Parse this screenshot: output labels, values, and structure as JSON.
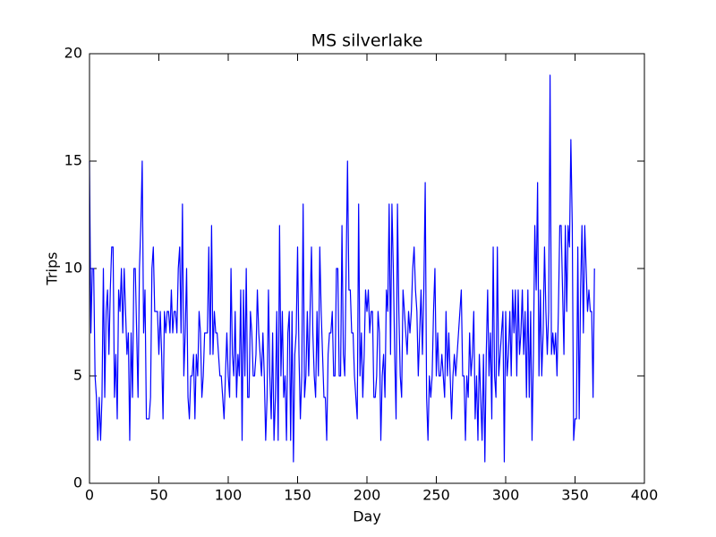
{
  "chart_data": {
    "type": "line",
    "title": "MS silverlake",
    "x_label": "Day",
    "y_label": "Trips",
    "color": "#0000ff",
    "xlim": [
      0,
      400
    ],
    "xticks": [
      0,
      50,
      100,
      150,
      200,
      250,
      300,
      350,
      400
    ],
    "ylim": [
      0,
      20
    ],
    "yticks": [
      0,
      5,
      10,
      15,
      20
    ],
    "grid": false,
    "x": [
      0,
      1,
      2,
      3,
      4,
      5,
      6,
      7,
      8,
      9,
      10,
      11,
      12,
      13,
      14,
      15,
      16,
      17,
      18,
      19,
      20,
      21,
      22,
      23,
      24,
      25,
      26,
      27,
      28,
      29,
      30,
      31,
      32,
      33,
      34,
      35,
      36,
      37,
      38,
      39,
      40,
      41,
      42,
      43,
      44,
      45,
      46,
      47,
      48,
      49,
      50,
      51,
      52,
      53,
      54,
      55,
      56,
      57,
      58,
      59,
      60,
      61,
      62,
      63,
      64,
      65,
      66,
      67,
      68,
      69,
      70,
      71,
      72,
      73,
      74,
      75,
      76,
      77,
      78,
      79,
      80,
      81,
      82,
      83,
      84,
      85,
      86,
      87,
      88,
      89,
      90,
      91,
      92,
      93,
      94,
      95,
      96,
      97,
      98,
      99,
      100,
      101,
      102,
      103,
      104,
      105,
      106,
      107,
      108,
      109,
      110,
      111,
      112,
      113,
      114,
      115,
      116,
      117,
      118,
      119,
      120,
      121,
      122,
      123,
      124,
      125,
      126,
      127,
      128,
      129,
      130,
      131,
      132,
      133,
      134,
      135,
      136,
      137,
      138,
      139,
      140,
      141,
      142,
      143,
      144,
      145,
      146,
      147,
      148,
      149,
      150,
      151,
      152,
      153,
      154,
      155,
      156,
      157,
      158,
      159,
      160,
      161,
      162,
      163,
      164,
      165,
      166,
      167,
      168,
      169,
      170,
      171,
      172,
      173,
      174,
      175,
      176,
      177,
      178,
      179,
      180,
      181,
      182,
      183,
      184,
      185,
      186,
      187,
      188,
      189,
      190,
      191,
      192,
      193,
      194,
      195,
      196,
      197,
      198,
      199,
      200,
      201,
      202,
      203,
      204,
      205,
      206,
      207,
      208,
      209,
      210,
      211,
      212,
      213,
      214,
      215,
      216,
      217,
      218,
      219,
      220,
      221,
      222,
      223,
      224,
      225,
      226,
      227,
      228,
      229,
      230,
      231,
      232,
      233,
      234,
      235,
      236,
      237,
      238,
      239,
      240,
      241,
      242,
      243,
      244,
      245,
      246,
      247,
      248,
      249,
      250,
      251,
      252,
      253,
      254,
      255,
      256,
      257,
      258,
      259,
      260,
      261,
      262,
      263,
      264,
      265,
      266,
      267,
      268,
      269,
      270,
      271,
      272,
      273,
      274,
      275,
      276,
      277,
      278,
      279,
      280,
      281,
      282,
      283,
      284,
      285,
      286,
      287,
      288,
      289,
      290,
      291,
      292,
      293,
      294,
      295,
      296,
      297,
      298,
      299,
      300,
      301,
      302,
      303,
      304,
      305,
      306,
      307,
      308,
      309,
      310,
      311,
      312,
      313,
      314,
      315,
      316,
      317,
      318,
      319,
      320,
      321,
      322,
      323,
      324,
      325,
      326,
      327,
      328,
      329,
      330,
      331,
      332,
      333,
      334,
      335,
      336,
      337,
      338,
      339,
      340,
      341,
      342,
      343,
      344,
      345,
      346,
      347,
      348,
      349,
      350,
      351,
      352,
      353,
      354,
      355,
      356,
      357,
      358,
      359,
      360,
      361,
      362,
      363,
      364
    ],
    "values": [
      15,
      7,
      10,
      10,
      5,
      4,
      2,
      4,
      2,
      4,
      10,
      4,
      8,
      9,
      6,
      9,
      11,
      11,
      4,
      6,
      3,
      9,
      8,
      10,
      7,
      10,
      8,
      6,
      7,
      2,
      7,
      4,
      10,
      10,
      7,
      4,
      10,
      12,
      15,
      7,
      9,
      3,
      3,
      3,
      4,
      10,
      11,
      8,
      8,
      8,
      6,
      8,
      6,
      3,
      8,
      7,
      8,
      8,
      7,
      9,
      7,
      8,
      8,
      7,
      10,
      11,
      7,
      13,
      5,
      7,
      10,
      4,
      3,
      5,
      5,
      6,
      3,
      6,
      5,
      8,
      7,
      4,
      5,
      7,
      7,
      7,
      11,
      6,
      12,
      6,
      8,
      7,
      7,
      6,
      5,
      5,
      4,
      3,
      5,
      7,
      5,
      4,
      10,
      6,
      5,
      8,
      4,
      6,
      5,
      9,
      2,
      9,
      5,
      10,
      4,
      4,
      8,
      7,
      5,
      5,
      6,
      9,
      7,
      6,
      5,
      7,
      5,
      2,
      4,
      9,
      5,
      3,
      7,
      2,
      4,
      8,
      2,
      12,
      5,
      8,
      4,
      5,
      2,
      7,
      8,
      2,
      8,
      1,
      6,
      7,
      11,
      6,
      3,
      5,
      13,
      4,
      5,
      8,
      5,
      8,
      11,
      7,
      5,
      4,
      8,
      5,
      11,
      8,
      6,
      4,
      4,
      2,
      6,
      7,
      7,
      8,
      5,
      5,
      10,
      10,
      5,
      5,
      12,
      6,
      5,
      10,
      15,
      9,
      9,
      7,
      7,
      5,
      4,
      3,
      13,
      5,
      7,
      4,
      6,
      9,
      8,
      9,
      7,
      8,
      8,
      4,
      4,
      5,
      8,
      7,
      2,
      5,
      6,
      4,
      9,
      8,
      13,
      6,
      13,
      10,
      6,
      3,
      13,
      8,
      5,
      4,
      9,
      8,
      7,
      6,
      8,
      7,
      8,
      10,
      11,
      9,
      8,
      5,
      7,
      9,
      6,
      9,
      14,
      4,
      2,
      5,
      4,
      5,
      8,
      10,
      5,
      7,
      5,
      5,
      6,
      5,
      4,
      8,
      5,
      7,
      5,
      3,
      5,
      6,
      5,
      6,
      7,
      8,
      9,
      5,
      5,
      2,
      5,
      4,
      7,
      5,
      6,
      8,
      3,
      5,
      2,
      6,
      4,
      2,
      6,
      1,
      6,
      9,
      5,
      7,
      3,
      11,
      5,
      4,
      11,
      5,
      6,
      7,
      8,
      1,
      8,
      5,
      6,
      8,
      5,
      9,
      7,
      9,
      5,
      9,
      6,
      7,
      9,
      6,
      8,
      4,
      9,
      4,
      8,
      2,
      6,
      12,
      9,
      14,
      5,
      9,
      5,
      7,
      11,
      8,
      6,
      8,
      19,
      6,
      7,
      6,
      7,
      5,
      8,
      12,
      12,
      9,
      6,
      12,
      8,
      12,
      11,
      16,
      12,
      2,
      3,
      3,
      11,
      3,
      9,
      12,
      7,
      12,
      10,
      8,
      9,
      8,
      8,
      4,
      10
    ]
  }
}
